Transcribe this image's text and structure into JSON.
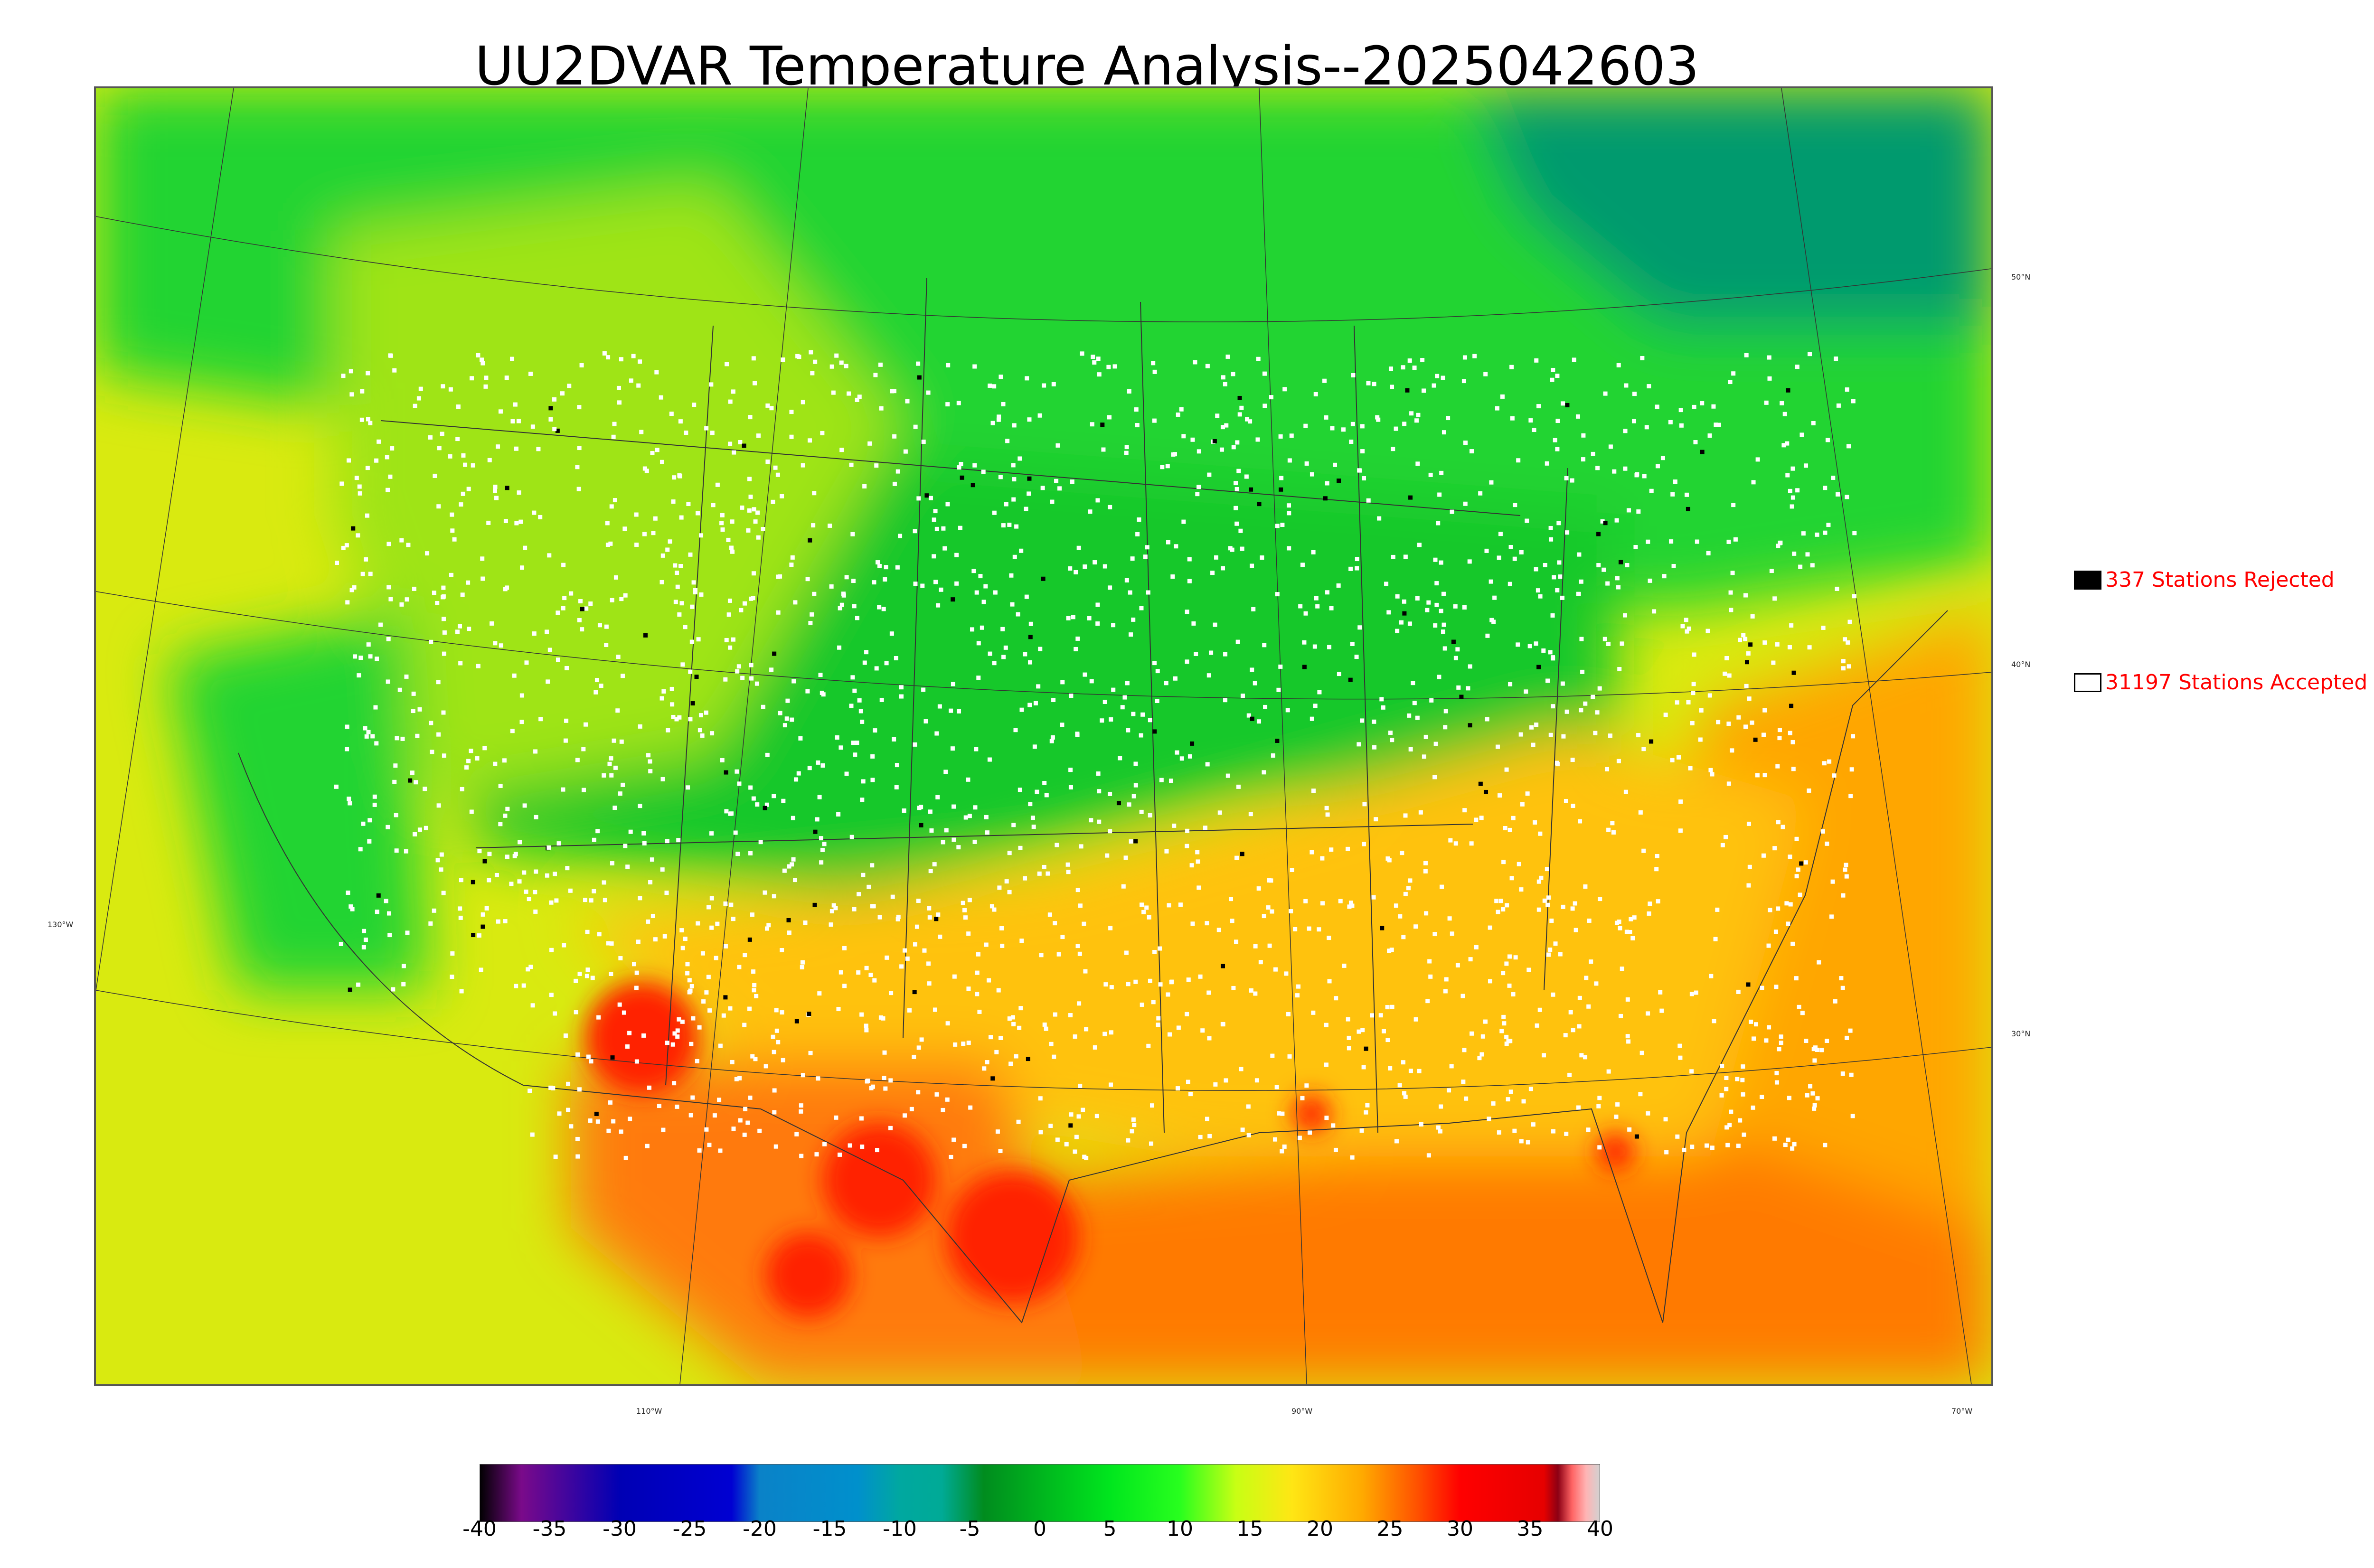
{
  "title": "UU2DVAR Temperature Analysis--2025042603",
  "legend": {
    "rejected": {
      "label": "337 Stations Rejected",
      "color": "#000000"
    },
    "accepted": {
      "label": "31197 Stations Accepted",
      "color": "#ffffff"
    }
  },
  "coordinate_labels": {
    "lat_50": "50°N",
    "lat_40": "40°N",
    "lat_30": "30°N",
    "lon_130": "130°W",
    "lon_110": "110°W",
    "lon_90": "90°W",
    "lon_70": "70°W"
  },
  "colorbar": {
    "min": -40,
    "max": 40,
    "ticks": [
      "-40",
      "-35",
      "-30",
      "-25",
      "-20",
      "-15",
      "-10",
      "-5",
      "0",
      "5",
      "10",
      "15",
      "20",
      "25",
      "30",
      "35",
      "40"
    ],
    "stops": [
      {
        "value": -40,
        "color": "#000000"
      },
      {
        "value": -37,
        "color": "#7a0a8a"
      },
      {
        "value": -30,
        "color": "#0000b4"
      },
      {
        "value": -22,
        "color": "#0000d2"
      },
      {
        "value": -20,
        "color": "#0a82c8"
      },
      {
        "value": -13,
        "color": "#0090cc"
      },
      {
        "value": -10,
        "color": "#00a8a0"
      },
      {
        "value": -7,
        "color": "#00aa96"
      },
      {
        "value": -4,
        "color": "#008c1e"
      },
      {
        "value": 0,
        "color": "#00b41e"
      },
      {
        "value": 5,
        "color": "#00e61e"
      },
      {
        "value": 10,
        "color": "#28ff1e"
      },
      {
        "value": 14,
        "color": "#c8ff14"
      },
      {
        "value": 18,
        "color": "#ffe614"
      },
      {
        "value": 23,
        "color": "#ffaa00"
      },
      {
        "value": 27,
        "color": "#ff5000"
      },
      {
        "value": 30,
        "color": "#ff0000"
      },
      {
        "value": 36,
        "color": "#e60000"
      },
      {
        "value": 37,
        "color": "#8c0014"
      },
      {
        "value": 38,
        "color": "#ff6464"
      },
      {
        "value": 39,
        "color": "#ffb4b4"
      },
      {
        "value": 40,
        "color": "#d2d2d2"
      }
    ]
  },
  "map_colors": {
    "ocean_west": "#d9ea10",
    "ocean_gulf": "#ff7a00",
    "ocean_atlantic": "#ffa600",
    "canada": "#22d430",
    "north_plains": "#12c82a",
    "mountain_west": "#9fe418",
    "south_central": "#ffc20a",
    "mexico": "#ff7a0a",
    "hot_spots": "#ff2200",
    "cold_north": "#009a6e",
    "station_accepted": "#ffffff",
    "station_rejected": "#000000",
    "boundary": "#333333"
  }
}
